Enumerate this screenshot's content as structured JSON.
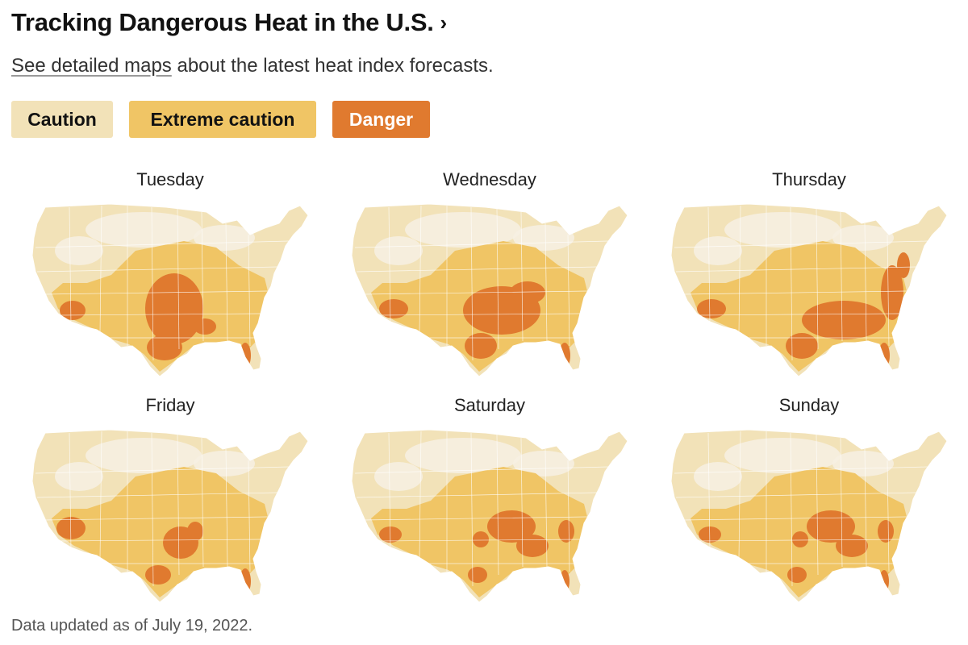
{
  "header": {
    "title": "Tracking Dangerous Heat in the U.S.",
    "chevron": "›"
  },
  "subtitle": {
    "link_text": "See detailed maps",
    "rest_text": " about the latest heat index forecasts."
  },
  "legend": [
    {
      "label": "Caution",
      "bg": "#f2e2b8",
      "fg": "#121212"
    },
    {
      "label": "Extreme caution",
      "bg": "#f0c565",
      "fg": "#121212"
    },
    {
      "label": "Danger",
      "bg": "#e07a2f",
      "fg": "#ffffff"
    }
  ],
  "colors": {
    "none": "#f7f0e3",
    "caution": "#f2e2b8",
    "extreme_caution": "#f0c565",
    "danger": "#e07a2f",
    "state_border": "#ffffff"
  },
  "maps": [
    {
      "day": "Tuesday",
      "extreme_region": "central-south-east",
      "danger_region": "southern-plains-texas-gulf-florida"
    },
    {
      "day": "Wednesday",
      "extreme_region": "central-south-east",
      "danger_region": "south-central-gulf-florida"
    },
    {
      "day": "Thursday",
      "extreme_region": "central-south-east",
      "danger_region": "southeast-gulf-east-coast"
    },
    {
      "day": "Friday",
      "extreme_region": "central-south-east",
      "danger_region": "southern-plains-southwest-florida"
    },
    {
      "day": "Saturday",
      "extreme_region": "central-south-east",
      "danger_region": "south-central-southeast-florida"
    },
    {
      "day": "Sunday",
      "extreme_region": "central-south-east",
      "danger_region": "south-central-southeast-florida"
    }
  ],
  "footer": {
    "updated": "Data updated as of July 19, 2022."
  }
}
